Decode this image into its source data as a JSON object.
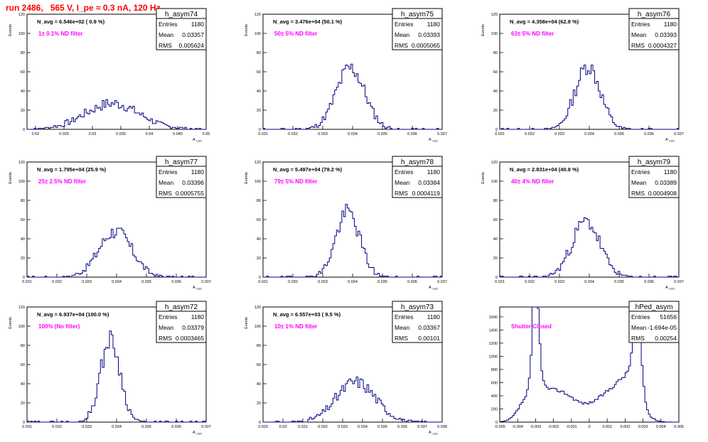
{
  "header": {
    "run_title": "run 2486,   565 V, I_pe ≈ 0.3 nA, 120 Hz"
  },
  "colors": {
    "histogram_line": "#000080",
    "annotation": "#ff00ff",
    "title": "#ff0000",
    "axis": "#000000"
  },
  "chart_data": [
    {
      "type": "histogram",
      "name": "h_asym74",
      "navg": "N_avg = 6.546e+02 ( 0.9 %)",
      "filter_label": "1± 0.1% ND filter",
      "stats": {
        "entries": "1180",
        "mean": "0.03357",
        "rms": "0.005624"
      },
      "ylabel": "Events",
      "xlabel": "A_LED",
      "xlim": [
        0.0185,
        0.05
      ],
      "ylim": [
        0,
        120
      ],
      "xticks": [
        "0.02",
        "0.025",
        "0.03",
        "0.035",
        "0.04",
        "0.045",
        "0.05"
      ],
      "xtick_values": [
        0.02,
        0.025,
        0.03,
        0.035,
        0.04,
        0.045,
        0.05
      ],
      "yticks": [
        0,
        20,
        40,
        60,
        80,
        100,
        120
      ],
      "shape": {
        "kind": "gauss",
        "mu": 0.0335,
        "sigma": 0.0048,
        "peak": 27,
        "seed": 7
      }
    },
    {
      "type": "histogram",
      "name": "h_asym75",
      "navg": "N_avg = 3.476e+04 (50.1 %)",
      "filter_label": "50± 5% ND filter",
      "stats": {
        "entries": "1180",
        "mean": "0.03393",
        "rms": "0.0005065"
      },
      "ylabel": "Events",
      "xlabel": "A_LED",
      "xlim": [
        0.031,
        0.037
      ],
      "ylim": [
        0,
        120
      ],
      "xticks": [
        "0.031",
        "0.032",
        "0.033",
        "0.034",
        "0.035",
        "0.036",
        "0.037"
      ],
      "xtick_values": [
        0.031,
        0.032,
        0.033,
        0.034,
        0.035,
        0.036,
        0.037
      ],
      "yticks": [
        0,
        20,
        40,
        60,
        80,
        100,
        120
      ],
      "shape": {
        "kind": "gauss",
        "mu": 0.03393,
        "sigma": 0.00048,
        "peak": 64,
        "seed": 11
      }
    },
    {
      "type": "histogram",
      "name": "h_asym76",
      "navg": "N_avg = 4.358e+04 (62.8 %)",
      "filter_label": "63± 5% ND filter",
      "stats": {
        "entries": "1180",
        "mean": "0.03393",
        "rms": "0.0004327"
      },
      "ylabel": "Events",
      "xlabel": "A_LED",
      "xlim": [
        0.031,
        0.037
      ],
      "ylim": [
        0,
        120
      ],
      "xticks": [
        "0.031",
        "0.032",
        "0.033",
        "0.034",
        "0.035",
        "0.036",
        "0.037"
      ],
      "xtick_values": [
        0.031,
        0.032,
        0.033,
        0.034,
        0.035,
        0.036,
        0.037
      ],
      "yticks": [
        0,
        20,
        40,
        60,
        80,
        100,
        120
      ],
      "shape": {
        "kind": "gauss",
        "mu": 0.03395,
        "sigma": 0.00042,
        "peak": 66,
        "seed": 13
      }
    },
    {
      "type": "histogram",
      "name": "h_asym77",
      "navg": "N_avg = 1.795e+04 (25.9 %)",
      "filter_label": "25± 2.5% ND filter",
      "stats": {
        "entries": "1180",
        "mean": "0.03396",
        "rms": "0.0005755"
      },
      "ylabel": "Events",
      "xlabel": "A_LED",
      "xlim": [
        0.031,
        0.037
      ],
      "ylim": [
        0,
        120
      ],
      "xticks": [
        "0.031",
        "0.032",
        "0.033",
        "0.034",
        "0.035",
        "0.036",
        "0.037"
      ],
      "xtick_values": [
        0.031,
        0.032,
        0.033,
        0.034,
        0.035,
        0.036,
        0.037
      ],
      "yticks": [
        0,
        20,
        40,
        60,
        80,
        100,
        120
      ],
      "shape": {
        "kind": "gauss",
        "mu": 0.03396,
        "sigma": 0.00055,
        "peak": 48,
        "seed": 17
      }
    },
    {
      "type": "histogram",
      "name": "h_asym78",
      "navg": "N_avg = 5.497e+04 (79.2 %)",
      "filter_label": "79± 5% ND filter",
      "stats": {
        "entries": "1180",
        "mean": "0.03384",
        "rms": "0.0004119"
      },
      "ylabel": "Events",
      "xlabel": "A_LED",
      "xlim": [
        0.031,
        0.037
      ],
      "ylim": [
        0,
        120
      ],
      "xticks": [
        "0.031",
        "0.032",
        "0.033",
        "0.034",
        "0.035",
        "0.036",
        "0.037"
      ],
      "xtick_values": [
        0.031,
        0.032,
        0.033,
        0.034,
        0.035,
        0.036,
        0.037
      ],
      "yticks": [
        0,
        20,
        40,
        60,
        80,
        100,
        120
      ],
      "shape": {
        "kind": "gauss",
        "mu": 0.03384,
        "sigma": 0.0004,
        "peak": 68,
        "seed": 19
      }
    },
    {
      "type": "histogram",
      "name": "h_asym79",
      "navg": "N_avg = 2.831e+04 (40.8 %)",
      "filter_label": "40± 4% ND filter",
      "stats": {
        "entries": "1180",
        "mean": "0.03389",
        "rms": "0.0004908"
      },
      "ylabel": "Events",
      "xlabel": "A_LED",
      "xlim": [
        0.031,
        0.037
      ],
      "ylim": [
        0,
        120
      ],
      "xticks": [
        "0.031",
        "0.032",
        "0.033",
        "0.034",
        "0.035",
        "0.036",
        "0.037"
      ],
      "xtick_values": [
        0.031,
        0.032,
        0.033,
        0.034,
        0.035,
        0.036,
        0.037
      ],
      "yticks": [
        0,
        20,
        40,
        60,
        80,
        100,
        120
      ],
      "shape": {
        "kind": "gauss",
        "mu": 0.03389,
        "sigma": 0.00047,
        "peak": 58,
        "seed": 23
      }
    },
    {
      "type": "histogram",
      "name": "h_asym72",
      "navg": "N_avg = 6.937e+04 (100.0 %)",
      "filter_label": "100% (No filter)",
      "stats": {
        "entries": "1180",
        "mean": "0.03379",
        "rms": "0.0003465"
      },
      "ylabel": "Events",
      "xlabel": "A_LED",
      "xlim": [
        0.031,
        0.037
      ],
      "ylim": [
        0,
        120
      ],
      "xticks": [
        "0.031",
        "0.032",
        "0.033",
        "0.034",
        "0.035",
        "0.036",
        "0.037"
      ],
      "xtick_values": [
        0.031,
        0.032,
        0.033,
        0.034,
        0.035,
        0.036,
        0.037
      ],
      "yticks": [
        0,
        20,
        40,
        60,
        80,
        100,
        120
      ],
      "shape": {
        "kind": "gauss",
        "mu": 0.03379,
        "sigma": 0.00033,
        "peak": 86,
        "seed": 29
      }
    },
    {
      "type": "histogram",
      "name": "h_asym73",
      "navg": "N_avg = 6.557e+03 ( 9.5 %)",
      "filter_label": "10± 1% ND filter",
      "stats": {
        "entries": "1180",
        "mean": "0.03367",
        "rms": "0.00101"
      },
      "ylabel": "Events",
      "xlabel": "A_LED",
      "xlim": [
        0.029,
        0.038
      ],
      "ylim": [
        0,
        120
      ],
      "xticks": [
        "0.029",
        "0.03",
        "0.031",
        "0.032",
        "0.033",
        "0.034",
        "0.035",
        "0.036",
        "0.037",
        "0.038"
      ],
      "xtick_values": [
        0.029,
        0.03,
        0.031,
        0.032,
        0.033,
        0.034,
        0.035,
        0.036,
        0.037,
        0.038
      ],
      "yticks": [
        0,
        20,
        40,
        60,
        80,
        100,
        120
      ],
      "shape": {
        "kind": "gauss",
        "mu": 0.03367,
        "sigma": 0.00098,
        "peak": 42,
        "seed": 31
      }
    },
    {
      "type": "histogram",
      "name": "hPed_asym",
      "navg": "",
      "filter_label": "Shutter Closed",
      "stats": {
        "entries": "51656",
        "mean": "-1.694e-05",
        "rms": "0.00254"
      },
      "ylabel": "",
      "xlabel": "",
      "xlim": [
        -0.005,
        0.005
      ],
      "ylim": [
        0,
        1750
      ],
      "xticks": [
        "-0.005",
        "-0.004",
        "-0.003",
        "-0.002",
        "-0.001",
        "0",
        "0.001",
        "0.002",
        "0.003",
        "0.004",
        "0.005"
      ],
      "xtick_values": [
        -0.005,
        -0.004,
        -0.003,
        -0.002,
        -0.001,
        0,
        0.001,
        0.002,
        0.003,
        0.004,
        0.005
      ],
      "yticks": [
        0,
        200,
        400,
        600,
        800,
        1000,
        1200,
        1400,
        1600
      ],
      "shape": {
        "kind": "pedestal",
        "seed": 37
      }
    }
  ]
}
